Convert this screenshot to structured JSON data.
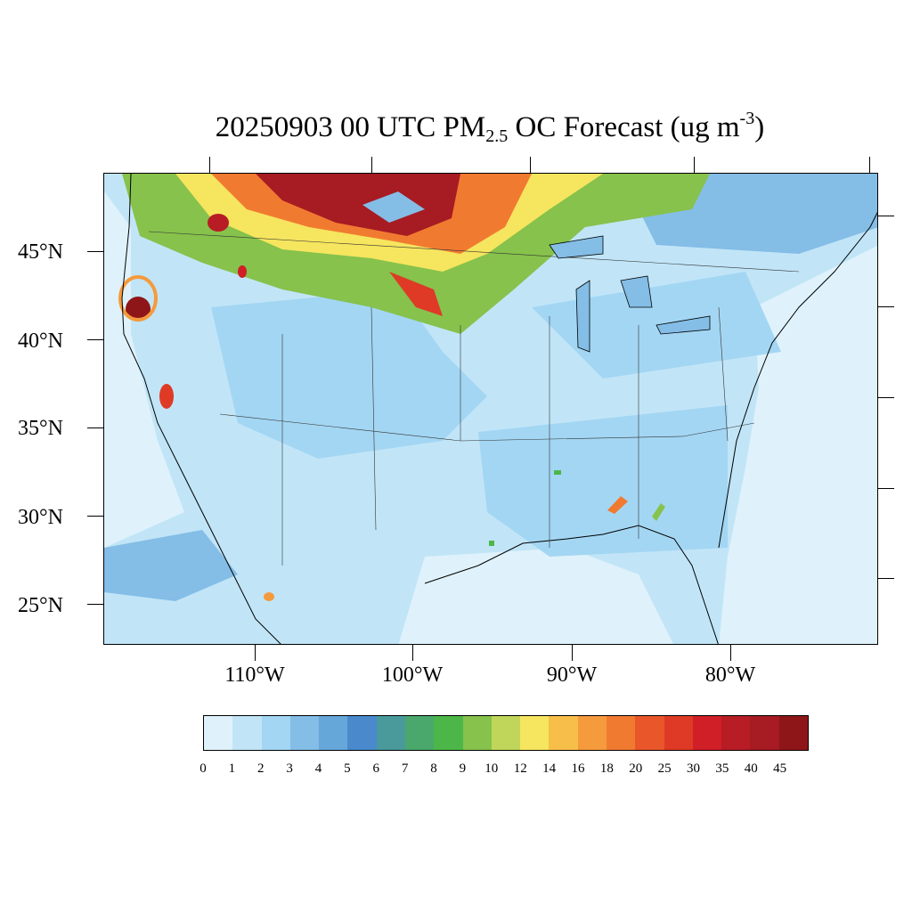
{
  "title": {
    "prefix": "20250903 00 UTC PM",
    "subscript": "2.5",
    "middle": " OC Forecast (ug m",
    "superscript": "-3",
    "suffix": ")"
  },
  "map": {
    "region": "Contiguous United States",
    "lat_labels": [
      "45°N",
      "40°N",
      "35°N",
      "30°N",
      "25°N"
    ],
    "lon_labels": [
      "110°W",
      "100°W",
      "90°W",
      "80°W"
    ],
    "water_color": "#cfe7f7"
  },
  "colorbar": {
    "labels": [
      "0",
      "1",
      "2",
      "3",
      "4",
      "5",
      "6",
      "7",
      "8",
      "9",
      "10",
      "12",
      "14",
      "16",
      "18",
      "20",
      "25",
      "30",
      "35",
      "40",
      "45"
    ],
    "colors": [
      "#dff2fb",
      "#c1e5f7",
      "#a3d6f3",
      "#84bde6",
      "#66a7da",
      "#4989cc",
      "#4a9a9c",
      "#4aa86c",
      "#4cb748",
      "#86c24c",
      "#c0d65a",
      "#f6e55e",
      "#f7bf4a",
      "#f59a3d",
      "#f17a31",
      "#e9562a",
      "#de3a26",
      "#d01f27",
      "#b81c25",
      "#a71b22",
      "#8e1618"
    ],
    "units": "ug m-3"
  }
}
